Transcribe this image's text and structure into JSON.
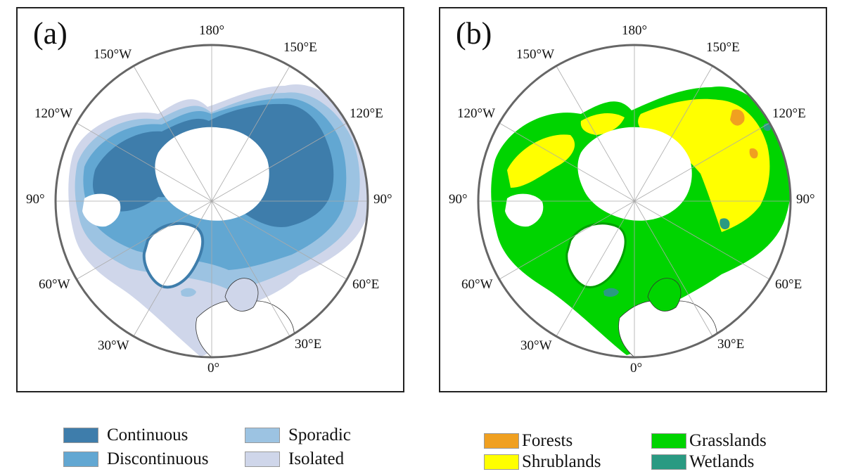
{
  "panels": {
    "a": {
      "label": "(a)",
      "legend": [
        {
          "label": "Continuous",
          "color": "#3e7dab"
        },
        {
          "label": "Discontinuous",
          "color": "#62a7d2"
        },
        {
          "label": "Sporadic",
          "color": "#9cc3e2"
        },
        {
          "label": "Isolated",
          "color": "#cfd6ea"
        }
      ]
    },
    "b": {
      "label": "(b)",
      "legend": [
        {
          "label": "Forests",
          "color": "#f0a020"
        },
        {
          "label": "Shrublands",
          "color": "#ffff00"
        },
        {
          "label": "Grasslands",
          "color": "#00d400"
        },
        {
          "label": "Wetlands",
          "color": "#2a9a82"
        }
      ]
    }
  },
  "longitude_labels": {
    "deg180": "180°",
    "e150": "150°E",
    "e120": "120°E",
    "e90": "90°",
    "e60": "60°E",
    "e30": "30°E",
    "deg0": "0°",
    "w30": "30°W",
    "w60": "60°W",
    "w90": "90°",
    "w120": "120°W",
    "w150": "150°W"
  }
}
